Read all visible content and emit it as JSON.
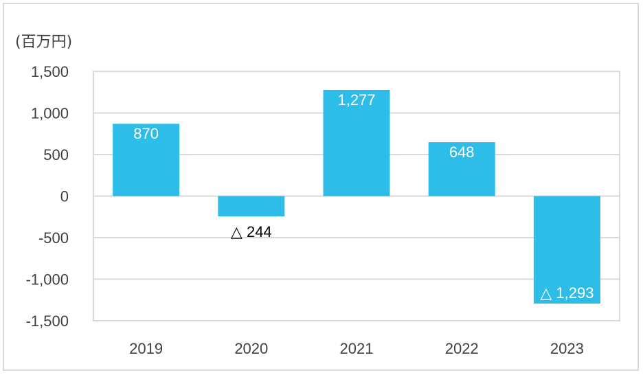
{
  "chart_data": {
    "type": "bar",
    "unit_label": "(百万円)",
    "categories": [
      "2019",
      "2020",
      "2021",
      "2022",
      "2023"
    ],
    "values": [
      870,
      -244,
      1277,
      648,
      -1293
    ],
    "data_labels": [
      "870",
      "△ 244",
      "1,277",
      "648",
      "△ 1,293"
    ],
    "yticks": [
      "1,500",
      "1,000",
      "500",
      "0",
      "-500",
      "-1,000",
      "-1,500"
    ],
    "ytick_values": [
      1500,
      1000,
      500,
      0,
      -500,
      -1000,
      -1500
    ],
    "ylim": [
      -1500,
      1500
    ],
    "grid": true,
    "legend": "none",
    "bar_color": "#2ebce8"
  }
}
